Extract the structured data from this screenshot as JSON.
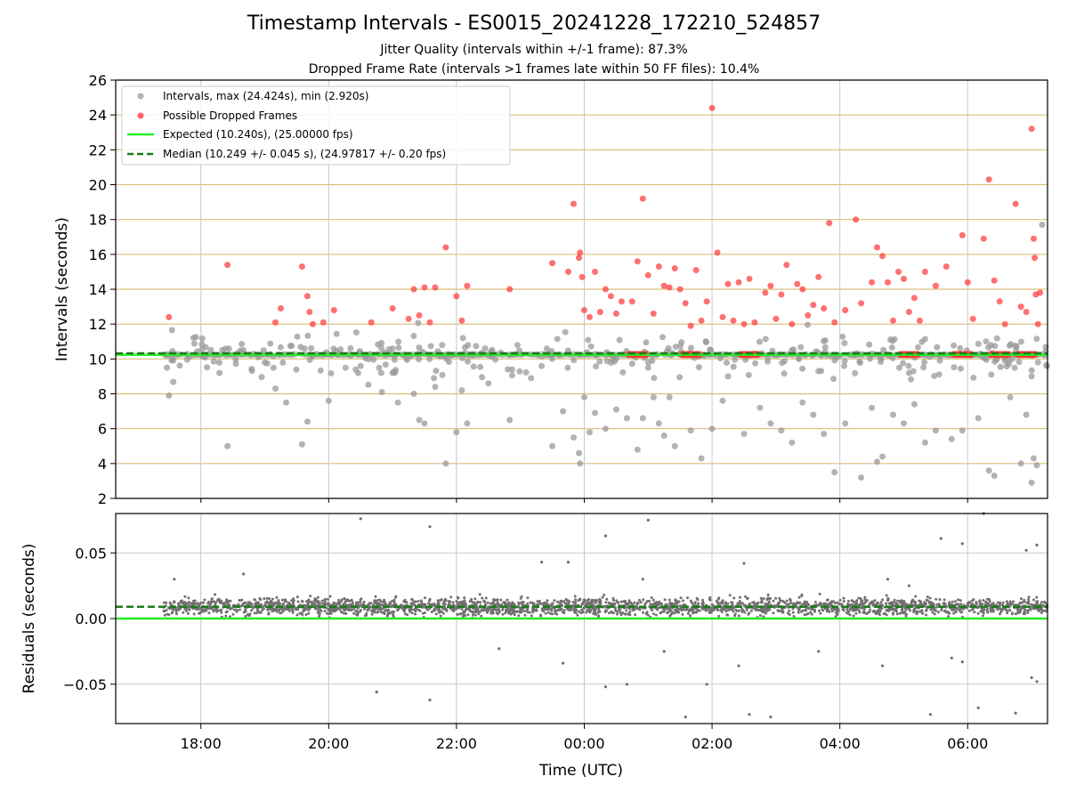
{
  "title": "Timestamp Intervals - ES0015_20241228_172210_524857",
  "subtitle_line1": "Jitter Quality (intervals within +/-1 frame): 87.3%",
  "subtitle_line2": "Dropped Frame Rate (intervals >1 frames late within 50 FF files): 10.4%",
  "colors": {
    "intervals": "#999999",
    "dropped": "#ff3333",
    "expected": "#22ee22",
    "median": "#1a7a1a",
    "ygrid": "#d9bf7a",
    "xgrid": "#c8c8c8",
    "residuals": "#707070"
  },
  "chart_data": [
    {
      "type": "scatter",
      "ylabel": "Intervals (seconds)",
      "ylim": [
        2,
        26
      ],
      "yticks": [
        "2",
        "4",
        "6",
        "8",
        "10",
        "12",
        "14",
        "16",
        "18",
        "20",
        "22",
        "24",
        "26"
      ],
      "xlim": [
        "16:40",
        "07:15"
      ],
      "grid": true,
      "legend_position": "top-left",
      "legend": [
        "Intervals, max (24.424s), min (2.920s)",
        "Possible Dropped Frames",
        "Expected (10.240s), (25.00000 fps)",
        "Median (10.249 +/- 0.045 s), (24.97817 +/- 0.20 fps)"
      ],
      "expected_value": 10.24,
      "median_value": 10.249,
      "series": [
        {
          "name": "Intervals, max (24.424s), min (2.920s)",
          "points": [
            [
              "17:30",
              7.9
            ],
            [
              "18:25",
              5.0
            ],
            [
              "19:10",
              8.3
            ],
            [
              "19:20",
              7.5
            ],
            [
              "19:35",
              5.1
            ],
            [
              "19:40",
              6.4
            ],
            [
              "20:00",
              7.6
            ],
            [
              "20:30",
              9.6
            ],
            [
              "20:50",
              8.1
            ],
            [
              "21:05",
              7.5
            ],
            [
              "21:20",
              8.0
            ],
            [
              "21:25",
              6.5
            ],
            [
              "21:30",
              6.3
            ],
            [
              "21:40",
              8.4
            ],
            [
              "21:50",
              4.0
            ],
            [
              "22:00",
              5.8
            ],
            [
              "22:05",
              8.2
            ],
            [
              "22:10",
              6.3
            ],
            [
              "22:30",
              8.6
            ],
            [
              "22:50",
              6.5
            ],
            [
              "23:10",
              8.9
            ],
            [
              "23:30",
              5.0
            ],
            [
              "23:40",
              7.0
            ],
            [
              "23:50",
              5.5
            ],
            [
              "23:55",
              4.6
            ],
            [
              "23:56",
              4.0
            ],
            [
              "00:00",
              7.8
            ],
            [
              "00:05",
              5.8
            ],
            [
              "00:10",
              6.9
            ],
            [
              "00:20",
              6.0
            ],
            [
              "00:30",
              7.1
            ],
            [
              "00:40",
              6.6
            ],
            [
              "00:50",
              4.8
            ],
            [
              "00:55",
              6.6
            ],
            [
              "01:05",
              7.8
            ],
            [
              "01:10",
              6.3
            ],
            [
              "01:15",
              5.6
            ],
            [
              "01:20",
              7.8
            ],
            [
              "01:25",
              5.0
            ],
            [
              "01:40",
              5.9
            ],
            [
              "01:50",
              4.3
            ],
            [
              "02:00",
              6.0
            ],
            [
              "02:10",
              7.6
            ],
            [
              "02:30",
              5.7
            ],
            [
              "02:45",
              7.2
            ],
            [
              "02:55",
              6.3
            ],
            [
              "03:05",
              5.9
            ],
            [
              "03:15",
              5.2
            ],
            [
              "03:25",
              7.5
            ],
            [
              "03:35",
              6.8
            ],
            [
              "03:45",
              5.7
            ],
            [
              "03:55",
              3.5
            ],
            [
              "04:05",
              6.3
            ],
            [
              "04:20",
              3.2
            ],
            [
              "04:30",
              7.2
            ],
            [
              "04:35",
              4.1
            ],
            [
              "04:40",
              4.4
            ],
            [
              "04:50",
              6.8
            ],
            [
              "05:00",
              6.3
            ],
            [
              "05:10",
              7.4
            ],
            [
              "05:20",
              5.2
            ],
            [
              "05:30",
              5.9
            ],
            [
              "05:45",
              5.4
            ],
            [
              "05:55",
              5.9
            ],
            [
              "06:10",
              6.6
            ],
            [
              "06:20",
              3.6
            ],
            [
              "06:25",
              3.3
            ],
            [
              "06:40",
              7.8
            ],
            [
              "06:50",
              4.0
            ],
            [
              "06:55",
              6.8
            ],
            [
              "07:00",
              2.9
            ],
            [
              "07:02",
              4.3
            ],
            [
              "07:05",
              3.9
            ],
            [
              "07:10",
              17.7
            ],
            [
              "07:00",
              9.0
            ],
            [
              "06:35",
              9.9
            ],
            [
              "05:05",
              9.2
            ],
            [
              "03:40",
              9.3
            ],
            [
              "02:15",
              9.0
            ],
            [
              "01:00",
              9.5
            ],
            [
              "23:20",
              9.6
            ],
            [
              "21:00",
              9.2
            ],
            [
              "18:40",
              10.5
            ],
            [
              "19:00",
              9.8
            ]
          ]
        },
        {
          "name": "Possible Dropped Frames",
          "points": [
            [
              "17:30",
              12.4
            ],
            [
              "18:25",
              15.4
            ],
            [
              "19:10",
              12.1
            ],
            [
              "19:15",
              12.9
            ],
            [
              "19:35",
              15.3
            ],
            [
              "19:40",
              13.6
            ],
            [
              "19:42",
              12.7
            ],
            [
              "19:45",
              12.0
            ],
            [
              "19:55",
              12.1
            ],
            [
              "20:05",
              12.8
            ],
            [
              "20:40",
              12.1
            ],
            [
              "21:00",
              12.9
            ],
            [
              "21:15",
              12.3
            ],
            [
              "21:20",
              14.0
            ],
            [
              "21:25",
              12.5
            ],
            [
              "21:30",
              14.1
            ],
            [
              "21:35",
              12.1
            ],
            [
              "21:40",
              14.1
            ],
            [
              "21:50",
              16.4
            ],
            [
              "22:00",
              13.6
            ],
            [
              "22:05",
              12.2
            ],
            [
              "22:10",
              14.2
            ],
            [
              "22:50",
              14.0
            ],
            [
              "23:30",
              15.5
            ],
            [
              "23:45",
              15.0
            ],
            [
              "23:50",
              18.9
            ],
            [
              "23:55",
              15.8
            ],
            [
              "23:56",
              16.1
            ],
            [
              "23:58",
              14.7
            ],
            [
              "00:00",
              12.8
            ],
            [
              "00:05",
              12.4
            ],
            [
              "00:10",
              15.0
            ],
            [
              "00:15",
              12.7
            ],
            [
              "00:20",
              14.0
            ],
            [
              "00:25",
              13.6
            ],
            [
              "00:30",
              12.6
            ],
            [
              "00:35",
              13.3
            ],
            [
              "00:45",
              13.3
            ],
            [
              "00:50",
              15.6
            ],
            [
              "00:55",
              19.2
            ],
            [
              "01:00",
              14.8
            ],
            [
              "01:05",
              12.6
            ],
            [
              "01:10",
              15.3
            ],
            [
              "01:15",
              14.2
            ],
            [
              "01:20",
              14.1
            ],
            [
              "01:25",
              15.2
            ],
            [
              "01:30",
              14.0
            ],
            [
              "01:35",
              13.2
            ],
            [
              "01:40",
              11.9
            ],
            [
              "01:45",
              15.1
            ],
            [
              "01:50",
              12.2
            ],
            [
              "01:55",
              13.3
            ],
            [
              "02:00",
              24.4
            ],
            [
              "02:05",
              16.1
            ],
            [
              "02:10",
              12.4
            ],
            [
              "02:15",
              14.3
            ],
            [
              "02:20",
              12.2
            ],
            [
              "02:25",
              14.4
            ],
            [
              "02:30",
              12.0
            ],
            [
              "02:35",
              14.6
            ],
            [
              "02:40",
              12.1
            ],
            [
              "02:50",
              13.8
            ],
            [
              "02:55",
              14.2
            ],
            [
              "03:00",
              12.3
            ],
            [
              "03:05",
              13.7
            ],
            [
              "03:10",
              15.4
            ],
            [
              "03:15",
              12.0
            ],
            [
              "03:20",
              14.3
            ],
            [
              "03:25",
              14.0
            ],
            [
              "03:30",
              12.5
            ],
            [
              "03:35",
              13.1
            ],
            [
              "03:40",
              14.7
            ],
            [
              "03:45",
              12.9
            ],
            [
              "03:50",
              17.8
            ],
            [
              "03:55",
              12.1
            ],
            [
              "04:05",
              12.8
            ],
            [
              "04:15",
              18.0
            ],
            [
              "04:20",
              13.2
            ],
            [
              "04:30",
              14.4
            ],
            [
              "04:35",
              16.4
            ],
            [
              "04:40",
              15.9
            ],
            [
              "04:45",
              14.4
            ],
            [
              "04:50",
              12.2
            ],
            [
              "04:55",
              15.0
            ],
            [
              "05:00",
              14.6
            ],
            [
              "05:05",
              12.7
            ],
            [
              "05:10",
              13.5
            ],
            [
              "05:15",
              12.2
            ],
            [
              "05:20",
              15.0
            ],
            [
              "05:30",
              14.2
            ],
            [
              "05:40",
              15.3
            ],
            [
              "05:55",
              17.1
            ],
            [
              "06:00",
              14.4
            ],
            [
              "06:05",
              12.3
            ],
            [
              "06:15",
              16.9
            ],
            [
              "06:20",
              20.3
            ],
            [
              "06:25",
              14.5
            ],
            [
              "06:30",
              13.3
            ],
            [
              "06:35",
              12.0
            ],
            [
              "06:45",
              18.9
            ],
            [
              "06:50",
              13.0
            ],
            [
              "06:55",
              12.7
            ],
            [
              "07:00",
              23.2
            ],
            [
              "07:02",
              16.9
            ],
            [
              "07:03",
              15.8
            ],
            [
              "07:04",
              13.7
            ],
            [
              "07:06",
              12.0
            ],
            [
              "07:08",
              13.8
            ]
          ]
        }
      ],
      "dropped_clusters": [
        "00:50",
        "01:40",
        "02:35",
        "05:05",
        "05:55",
        "06:30",
        "06:55"
      ]
    },
    {
      "type": "scatter",
      "xlabel": "Time (UTC)",
      "ylabel": "Residuals (seconds)",
      "ylim": [
        -0.08,
        0.08
      ],
      "yticks": [
        "−0.05",
        "0.00",
        "0.05"
      ],
      "xticks": [
        "18:00",
        "20:00",
        "22:00",
        "00:00",
        "02:00",
        "04:00",
        "06:00"
      ],
      "expected_residual": 0.0,
      "median_residual": 0.009,
      "outliers": [
        [
          "17:35",
          0.03
        ],
        [
          "18:40",
          0.034
        ],
        [
          "20:30",
          0.076
        ],
        [
          "20:45",
          -0.056
        ],
        [
          "21:35",
          0.07
        ],
        [
          "21:35",
          -0.062
        ],
        [
          "22:40",
          -0.023
        ],
        [
          "23:20",
          0.043
        ],
        [
          "23:45",
          0.043
        ],
        [
          "23:40",
          -0.034
        ],
        [
          "00:20",
          -0.052
        ],
        [
          "00:20",
          0.063
        ],
        [
          "00:40",
          -0.05
        ],
        [
          "00:55",
          0.03
        ],
        [
          "01:00",
          0.075
        ],
        [
          "01:15",
          -0.025
        ],
        [
          "01:35",
          -0.075
        ],
        [
          "01:55",
          -0.05
        ],
        [
          "02:25",
          -0.036
        ],
        [
          "02:30",
          0.042
        ],
        [
          "02:35",
          -0.073
        ],
        [
          "02:55",
          -0.075
        ],
        [
          "03:40",
          -0.025
        ],
        [
          "04:45",
          0.03
        ],
        [
          "04:40",
          -0.036
        ],
        [
          "05:05",
          0.025
        ],
        [
          "05:25",
          -0.073
        ],
        [
          "05:35",
          0.061
        ],
        [
          "05:45",
          -0.03
        ],
        [
          "05:55",
          0.057
        ],
        [
          "05:55",
          -0.033
        ],
        [
          "06:10",
          -0.068
        ],
        [
          "06:15",
          0.08
        ],
        [
          "06:45",
          -0.072
        ],
        [
          "06:55",
          0.052
        ],
        [
          "07:05",
          0.056
        ],
        [
          "07:00",
          -0.045
        ],
        [
          "07:05",
          -0.048
        ]
      ]
    }
  ]
}
